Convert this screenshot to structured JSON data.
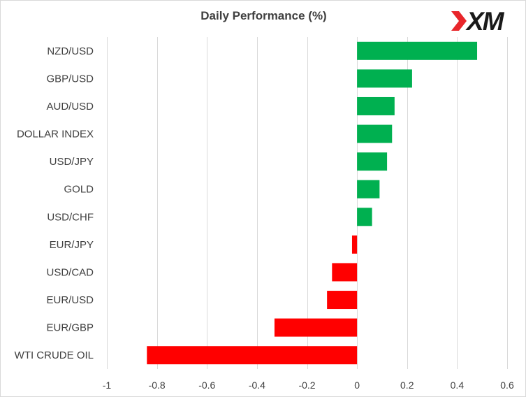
{
  "chart_data": {
    "type": "bar",
    "orientation": "horizontal",
    "title": "Daily Performance (%)",
    "xlabel": "",
    "ylabel": "",
    "categories": [
      "NZD/USD",
      "GBP/USD",
      "AUD/USD",
      "DOLLAR INDEX",
      "USD/JPY",
      "GOLD",
      "USD/CHF",
      "EUR/JPY",
      "USD/CAD",
      "EUR/USD",
      "EUR/GBP",
      "WTI CRUDE OIL"
    ],
    "values": [
      0.48,
      0.22,
      0.15,
      0.14,
      0.12,
      0.09,
      0.06,
      -0.02,
      -0.1,
      -0.12,
      -0.33,
      -0.84
    ],
    "xlim": [
      -1,
      0.6
    ],
    "xticks": [
      -1,
      -0.8,
      -0.6,
      -0.4,
      -0.2,
      0,
      0.2,
      0.4,
      0.6
    ],
    "xtick_labels": [
      "-1",
      "-0.8",
      "-0.6",
      "-0.4",
      "-0.2",
      "0",
      "0.2",
      "0.4",
      "0.6"
    ],
    "grid": "vertical",
    "legend": "none",
    "colors": {
      "positive": "#00b050",
      "negative": "#ff0000"
    }
  },
  "logo": {
    "text": "XM",
    "colors": {
      "mark": "#e8262b",
      "letters": "#1a1a1a"
    }
  }
}
